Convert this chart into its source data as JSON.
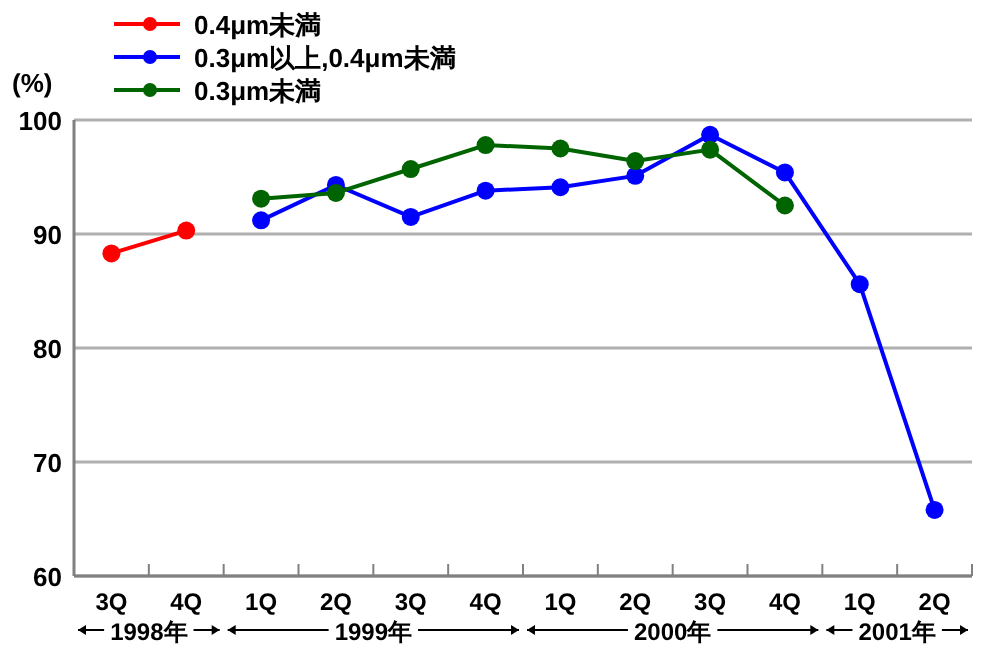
{
  "chart_data": {
    "type": "line",
    "ylabel": "(%)",
    "categories": [
      "3Q",
      "4Q",
      "1Q",
      "2Q",
      "3Q",
      "4Q",
      "1Q",
      "2Q",
      "3Q",
      "4Q",
      "1Q",
      "2Q"
    ],
    "series": [
      {
        "name": "0.4μm未満",
        "color": "#ff0000",
        "values": [
          88.3,
          90.3,
          null,
          null,
          null,
          null,
          null,
          null,
          null,
          null,
          null,
          null
        ]
      },
      {
        "name": "0.3μm以上,0.4μm未満",
        "color": "#0000ff",
        "values": [
          null,
          null,
          91.2,
          94.3,
          91.5,
          93.8,
          94.1,
          95.1,
          98.7,
          95.4,
          85.6,
          65.8
        ]
      },
      {
        "name": "0.3μm未満",
        "color": "#006400",
        "values": [
          null,
          null,
          93.1,
          93.6,
          95.7,
          97.8,
          97.5,
          96.4,
          97.4,
          92.5,
          null,
          null
        ]
      }
    ],
    "annotations": [
      "1998年",
      "1999年",
      "2000年",
      "2001年"
    ],
    "ylim": [
      60,
      100
    ],
    "yticks": [
      60,
      70,
      80,
      90,
      100
    ],
    "grid": "y",
    "legend": "top left",
    "marker": "circle",
    "line_style": "solid"
  }
}
